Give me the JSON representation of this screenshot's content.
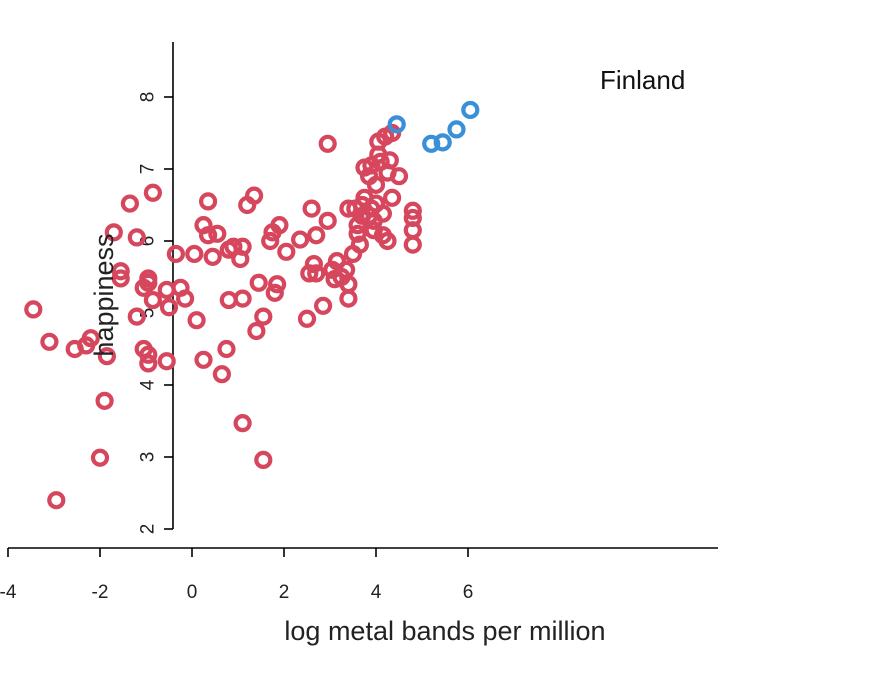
{
  "chart_data": {
    "type": "scatter",
    "xlabel": "log metal bands per million",
    "ylabel": "happiness",
    "xlim": [
      -4.4,
      7.4
    ],
    "ylim": [
      2.0,
      8.6
    ],
    "xticks": [
      -4,
      -2,
      0,
      2,
      4,
      6
    ],
    "xtick_labels": [
      "-4",
      "-2",
      "0",
      "2",
      "4",
      "6"
    ],
    "yticks": [
      2,
      3,
      4,
      5,
      6,
      7,
      8
    ],
    "ytick_labels": [
      "2",
      "3",
      "4",
      "5",
      "6",
      "7",
      "8"
    ],
    "annotation": "Finland",
    "series": [
      {
        "color": "#d6475e",
        "points": [
          [
            -3.45,
            5.05
          ],
          [
            -3.1,
            4.6
          ],
          [
            -2.55,
            4.5
          ],
          [
            -2.3,
            4.55
          ],
          [
            -2.2,
            4.65
          ],
          [
            -1.85,
            4.4
          ],
          [
            -1.9,
            3.78
          ],
          [
            -2.0,
            2.99
          ],
          [
            -2.95,
            2.4
          ],
          [
            -1.7,
            6.12
          ],
          [
            -1.55,
            5.58
          ],
          [
            -1.55,
            5.48
          ],
          [
            -1.35,
            6.52
          ],
          [
            -1.2,
            6.05
          ],
          [
            -1.2,
            4.95
          ],
          [
            -1.05,
            5.35
          ],
          [
            -0.95,
            5.42
          ],
          [
            -0.95,
            5.48
          ],
          [
            -1.05,
            4.5
          ],
          [
            -0.95,
            4.42
          ],
          [
            -0.95,
            4.3
          ],
          [
            -0.85,
            5.18
          ],
          [
            -0.85,
            6.67
          ],
          [
            -0.55,
            5.32
          ],
          [
            -0.5,
            5.08
          ],
          [
            -0.55,
            4.33
          ],
          [
            -0.35,
            5.82
          ],
          [
            -0.25,
            5.35
          ],
          [
            -0.15,
            5.2
          ],
          [
            0.05,
            5.82
          ],
          [
            0.1,
            4.9
          ],
          [
            0.25,
            6.22
          ],
          [
            0.35,
            6.55
          ],
          [
            0.35,
            6.08
          ],
          [
            0.25,
            4.35
          ],
          [
            0.45,
            5.78
          ],
          [
            0.55,
            6.1
          ],
          [
            0.65,
            4.15
          ],
          [
            0.75,
            4.5
          ],
          [
            0.8,
            5.88
          ],
          [
            0.8,
            5.18
          ],
          [
            0.9,
            5.92
          ],
          [
            1.1,
            5.92
          ],
          [
            1.05,
            5.75
          ],
          [
            1.1,
            5.2
          ],
          [
            1.1,
            3.47
          ],
          [
            1.2,
            6.5
          ],
          [
            1.35,
            6.63
          ],
          [
            1.4,
            4.75
          ],
          [
            1.45,
            5.42
          ],
          [
            1.55,
            4.95
          ],
          [
            1.55,
            2.96
          ],
          [
            1.7,
            6.0
          ],
          [
            1.75,
            6.12
          ],
          [
            1.8,
            5.28
          ],
          [
            1.85,
            5.4
          ],
          [
            1.9,
            6.22
          ],
          [
            2.05,
            5.85
          ],
          [
            2.35,
            6.02
          ],
          [
            2.5,
            4.92
          ],
          [
            2.55,
            5.55
          ],
          [
            2.6,
            6.45
          ],
          [
            2.65,
            5.68
          ],
          [
            2.7,
            6.08
          ],
          [
            2.7,
            5.55
          ],
          [
            2.85,
            5.1
          ],
          [
            2.95,
            7.35
          ],
          [
            2.95,
            6.28
          ],
          [
            3.05,
            5.6
          ],
          [
            3.1,
            5.47
          ],
          [
            3.15,
            5.72
          ],
          [
            3.25,
            5.5
          ],
          [
            3.35,
            5.6
          ],
          [
            3.4,
            5.4
          ],
          [
            3.4,
            5.2
          ],
          [
            3.4,
            6.45
          ],
          [
            3.5,
            5.82
          ],
          [
            3.55,
            6.45
          ],
          [
            3.6,
            6.22
          ],
          [
            3.6,
            6.1
          ],
          [
            3.65,
            5.95
          ],
          [
            3.7,
            6.35
          ],
          [
            3.7,
            6.5
          ],
          [
            3.75,
            6.6
          ],
          [
            3.75,
            7.02
          ],
          [
            3.85,
            6.9
          ],
          [
            3.85,
            6.35
          ],
          [
            3.9,
            7.05
          ],
          [
            3.9,
            6.45
          ],
          [
            3.95,
            6.15
          ],
          [
            3.95,
            6.28
          ],
          [
            4.0,
            6.78
          ],
          [
            4.0,
            6.52
          ],
          [
            4.05,
            7.2
          ],
          [
            4.05,
            7.38
          ],
          [
            4.1,
            7.1
          ],
          [
            4.15,
            6.38
          ],
          [
            4.15,
            6.08
          ],
          [
            4.2,
            7.45
          ],
          [
            4.25,
            6.95
          ],
          [
            4.25,
            6.0
          ],
          [
            4.3,
            7.12
          ],
          [
            4.35,
            6.6
          ],
          [
            4.35,
            7.5
          ],
          [
            4.5,
            6.9
          ],
          [
            4.8,
            6.42
          ],
          [
            4.8,
            6.32
          ],
          [
            4.8,
            6.15
          ],
          [
            4.8,
            5.95
          ]
        ]
      },
      {
        "color": "#3a8fd9",
        "points": [
          [
            4.45,
            7.62
          ],
          [
            5.2,
            7.35
          ],
          [
            5.45,
            7.37
          ],
          [
            5.75,
            7.55
          ],
          [
            6.05,
            7.82
          ]
        ]
      }
    ]
  }
}
